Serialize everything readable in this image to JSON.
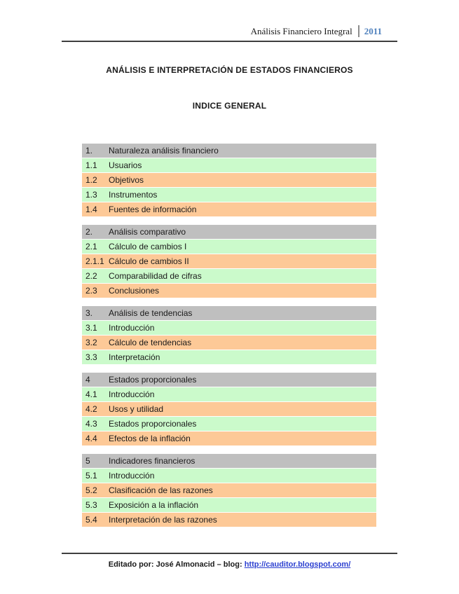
{
  "header": {
    "title": "Análisis Financiero Integral",
    "year": "2011"
  },
  "titles": {
    "main": "ANÁLISIS E INTERPRETACIÓN DE ESTADOS FINANCIEROS",
    "index": "INDICE GENERAL"
  },
  "colors": {
    "gray_row": "#bfbfbf",
    "green_row": "#cbfacb",
    "orange_row": "#fdc997",
    "year_blue": "#4f81bd",
    "link_blue": "#2b3fd0",
    "rule_dark": "#3f3f3f"
  },
  "toc": {
    "sections": [
      {
        "number": "1.",
        "title": "Naturaleza análisis financiero",
        "items": [
          {
            "number": "1.1",
            "title": "Usuarios"
          },
          {
            "number": "1.2",
            "title": "Objetivos"
          },
          {
            "number": "1.3",
            "title": "Instrumentos"
          },
          {
            "number": "1.4",
            "title": "Fuentes de información"
          }
        ]
      },
      {
        "number": "2.",
        "title": "Análisis comparativo",
        "items": [
          {
            "number": "2.1",
            "title": "Cálculo de cambios I"
          },
          {
            "number": "2.1.1",
            "title": "Cálculo de cambios II"
          },
          {
            "number": "2.2",
            "title": "Comparabilidad de cifras"
          },
          {
            "number": "2.3",
            "title": "Conclusiones"
          }
        ]
      },
      {
        "number": "3.",
        "title": "Análisis de tendencias",
        "items": [
          {
            "number": "3.1",
            "title": "Introducción"
          },
          {
            "number": "3.2",
            "title": "Cálculo de tendencias"
          },
          {
            "number": "3.3",
            "title": "Interpretación"
          }
        ]
      },
      {
        "number": "4",
        "title": "Estados proporcionales",
        "items": [
          {
            "number": "4.1",
            "title": "Introducción"
          },
          {
            "number": "4.2",
            "title": "Usos y utilidad"
          },
          {
            "number": "4.3",
            "title": "Estados proporcionales"
          },
          {
            "number": "4.4",
            "title": "Efectos de la inflación"
          }
        ]
      },
      {
        "number": "5",
        "title": "Indicadores financieros",
        "items": [
          {
            "number": "5.1",
            "title": "Introducción"
          },
          {
            "number": "5.2",
            "title": "Clasificación de las razones"
          },
          {
            "number": "5.3",
            "title": "Exposición a la inflación"
          },
          {
            "number": "5.4",
            "title": "Interpretación de las razones"
          }
        ]
      }
    ]
  },
  "footer": {
    "text": "Editado por: José Almonacid – blog: ",
    "link": "http://cauditor.blogspot.com/"
  }
}
